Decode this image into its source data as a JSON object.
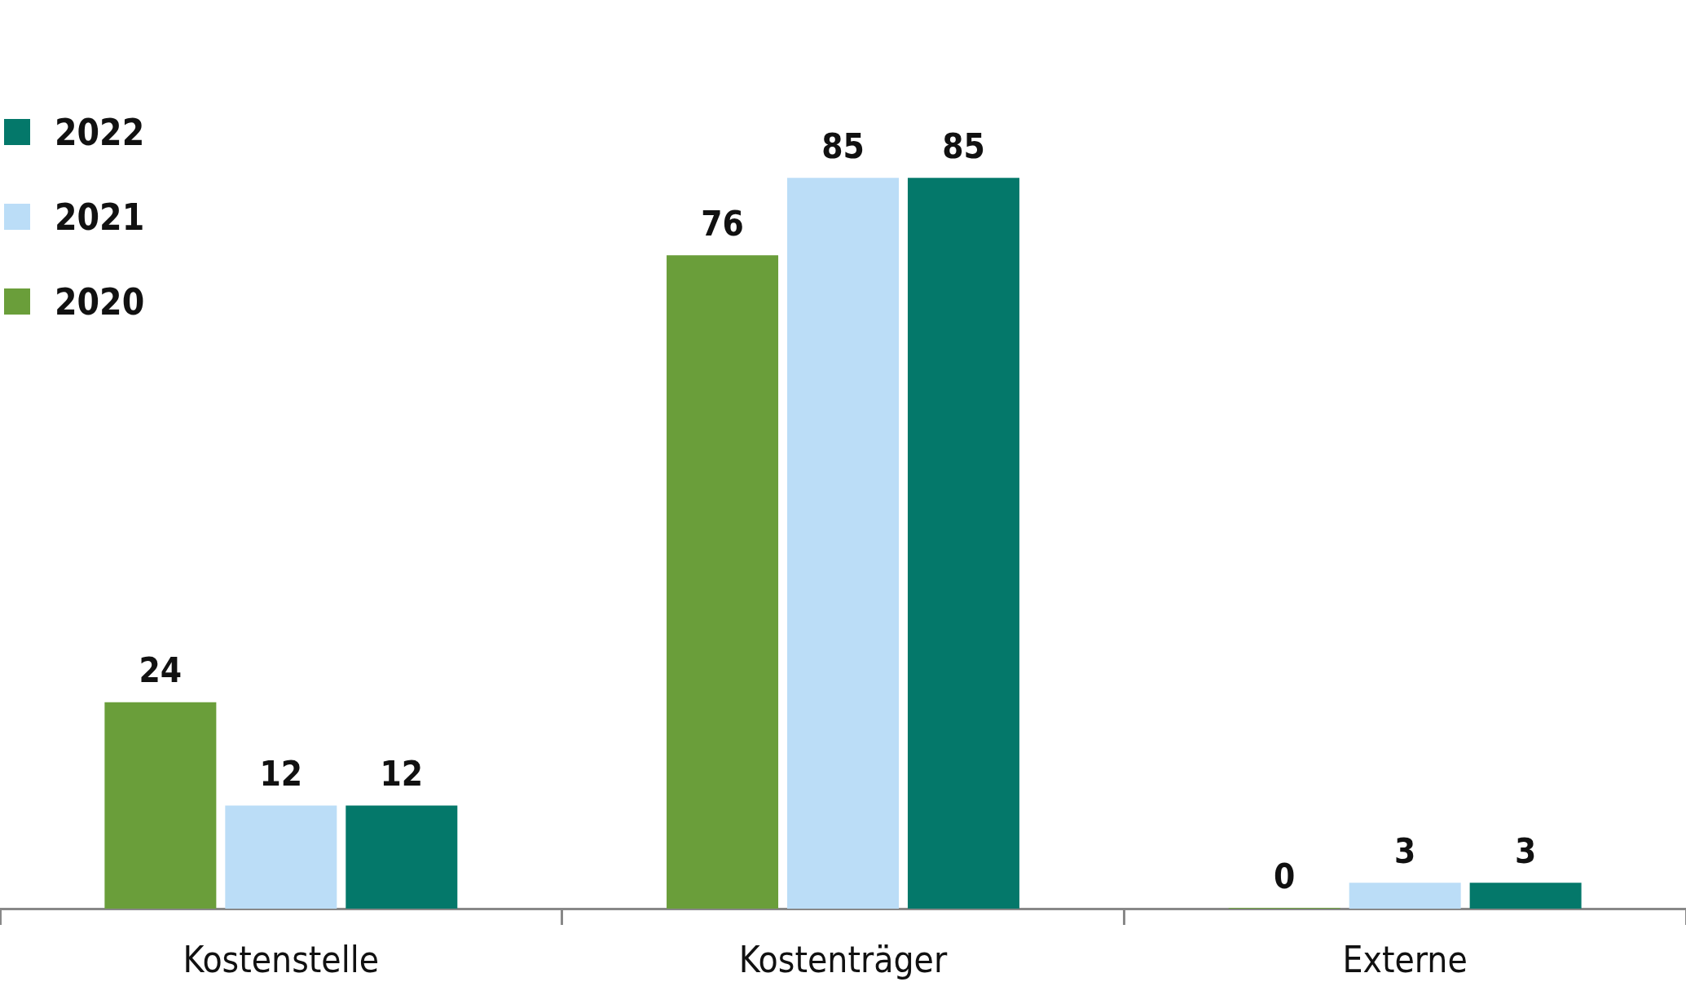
{
  "chart_data": {
    "type": "bar",
    "categories": [
      "Kostenstelle",
      "Kostenträger",
      "Externe"
    ],
    "series": [
      {
        "name": "2020",
        "color": "#6a9e3a",
        "values": [
          24,
          76,
          0
        ]
      },
      {
        "name": "2021",
        "color": "#bbddf7",
        "values": [
          12,
          85,
          3
        ]
      },
      {
        "name": "2022",
        "color": "#04786a",
        "values": [
          12,
          85,
          3
        ]
      }
    ],
    "data_labels": true,
    "legend": "top left",
    "grid": false
  }
}
